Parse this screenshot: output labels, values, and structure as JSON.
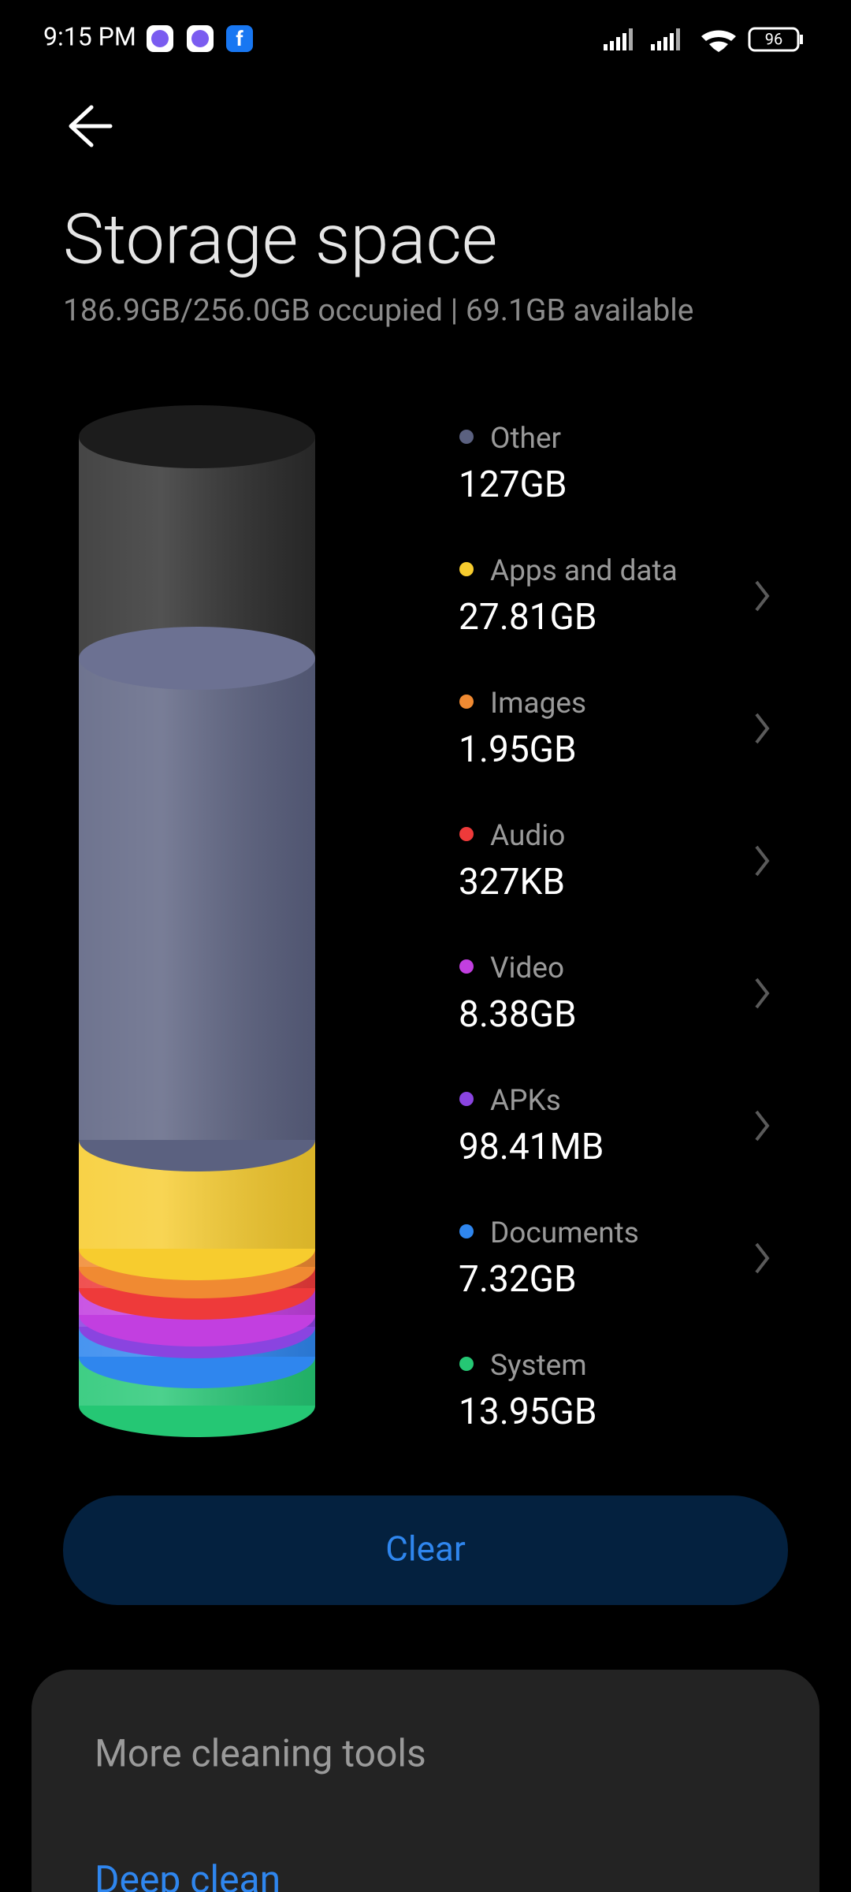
{
  "status_bar": {
    "time": "9:15 PM",
    "battery": "96"
  },
  "header": {
    "title": "Storage space",
    "subtitle": "186.9GB/256.0GB occupied | 69.1GB available"
  },
  "storage": {
    "items": [
      {
        "label": "Other",
        "size": "127GB",
        "color": "#5b6180"
      },
      {
        "label": "Apps and data",
        "size": "27.81GB",
        "color": "#f7cc2e"
      },
      {
        "label": "Images",
        "size": "1.95GB",
        "color": "#f08a32"
      },
      {
        "label": "Audio",
        "size": "327KB",
        "color": "#ee3a3a"
      },
      {
        "label": "Video",
        "size": "8.38GB",
        "color": "#c23fe0"
      },
      {
        "label": "APKs",
        "size": "98.41MB",
        "color": "#8a44e0"
      },
      {
        "label": "Documents",
        "size": "7.32GB",
        "color": "#2f86ee"
      },
      {
        "label": "System",
        "size": "13.95GB",
        "color": "#25c774"
      }
    ]
  },
  "actions": {
    "button": "Clear"
  },
  "card": {
    "title": "More cleaning tools",
    "items": [
      "Deep clean"
    ]
  }
}
